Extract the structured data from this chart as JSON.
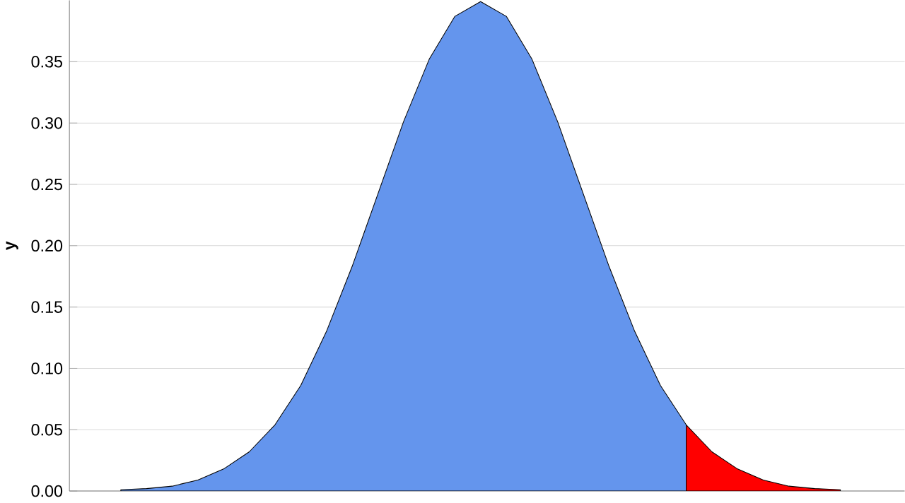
{
  "chart_data": {
    "type": "area",
    "ylabel": "y",
    "categories": [
      null,
      null,
      null,
      null,
      null,
      null,
      null,
      null,
      null,
      null,
      null,
      null,
      null,
      null,
      null,
      null,
      null,
      null,
      null,
      null,
      null,
      null,
      null,
      null,
      null,
      null,
      null,
      null,
      null
    ],
    "ylim": [
      0,
      0.4
    ],
    "yticks": [
      {
        "value": 0,
        "label": "0.00"
      },
      {
        "value": 0.05,
        "label": "0.05"
      },
      {
        "value": 0.1,
        "label": "0.10"
      },
      {
        "value": 0.15,
        "label": "0.15"
      },
      {
        "value": 0.2,
        "label": "0.20"
      },
      {
        "value": 0.25,
        "label": "0.25"
      },
      {
        "value": 0.3,
        "label": "0.30"
      },
      {
        "value": 0.35,
        "label": "0.35"
      }
    ],
    "tick_labels": "y",
    "grid": "y",
    "series": [
      {
        "color": "#6495ed",
        "values": [
          0.001,
          0.002,
          0.004,
          0.009,
          0.018,
          0.032,
          0.054,
          0.086,
          0.13,
          0.183,
          0.242,
          0.301,
          0.352,
          0.387,
          0.399,
          0.387,
          0.352,
          0.301,
          0.242,
          0.183,
          0.13,
          0.086,
          0.054,
          null,
          null,
          null,
          null,
          null,
          null
        ]
      },
      {
        "color": "#ff0000",
        "values": [
          null,
          null,
          null,
          null,
          null,
          null,
          null,
          null,
          null,
          null,
          null,
          null,
          null,
          null,
          null,
          null,
          null,
          null,
          null,
          null,
          null,
          null,
          0.054,
          0.032,
          0.018,
          0.009,
          0.004,
          0.002,
          0.001
        ]
      }
    ]
  }
}
